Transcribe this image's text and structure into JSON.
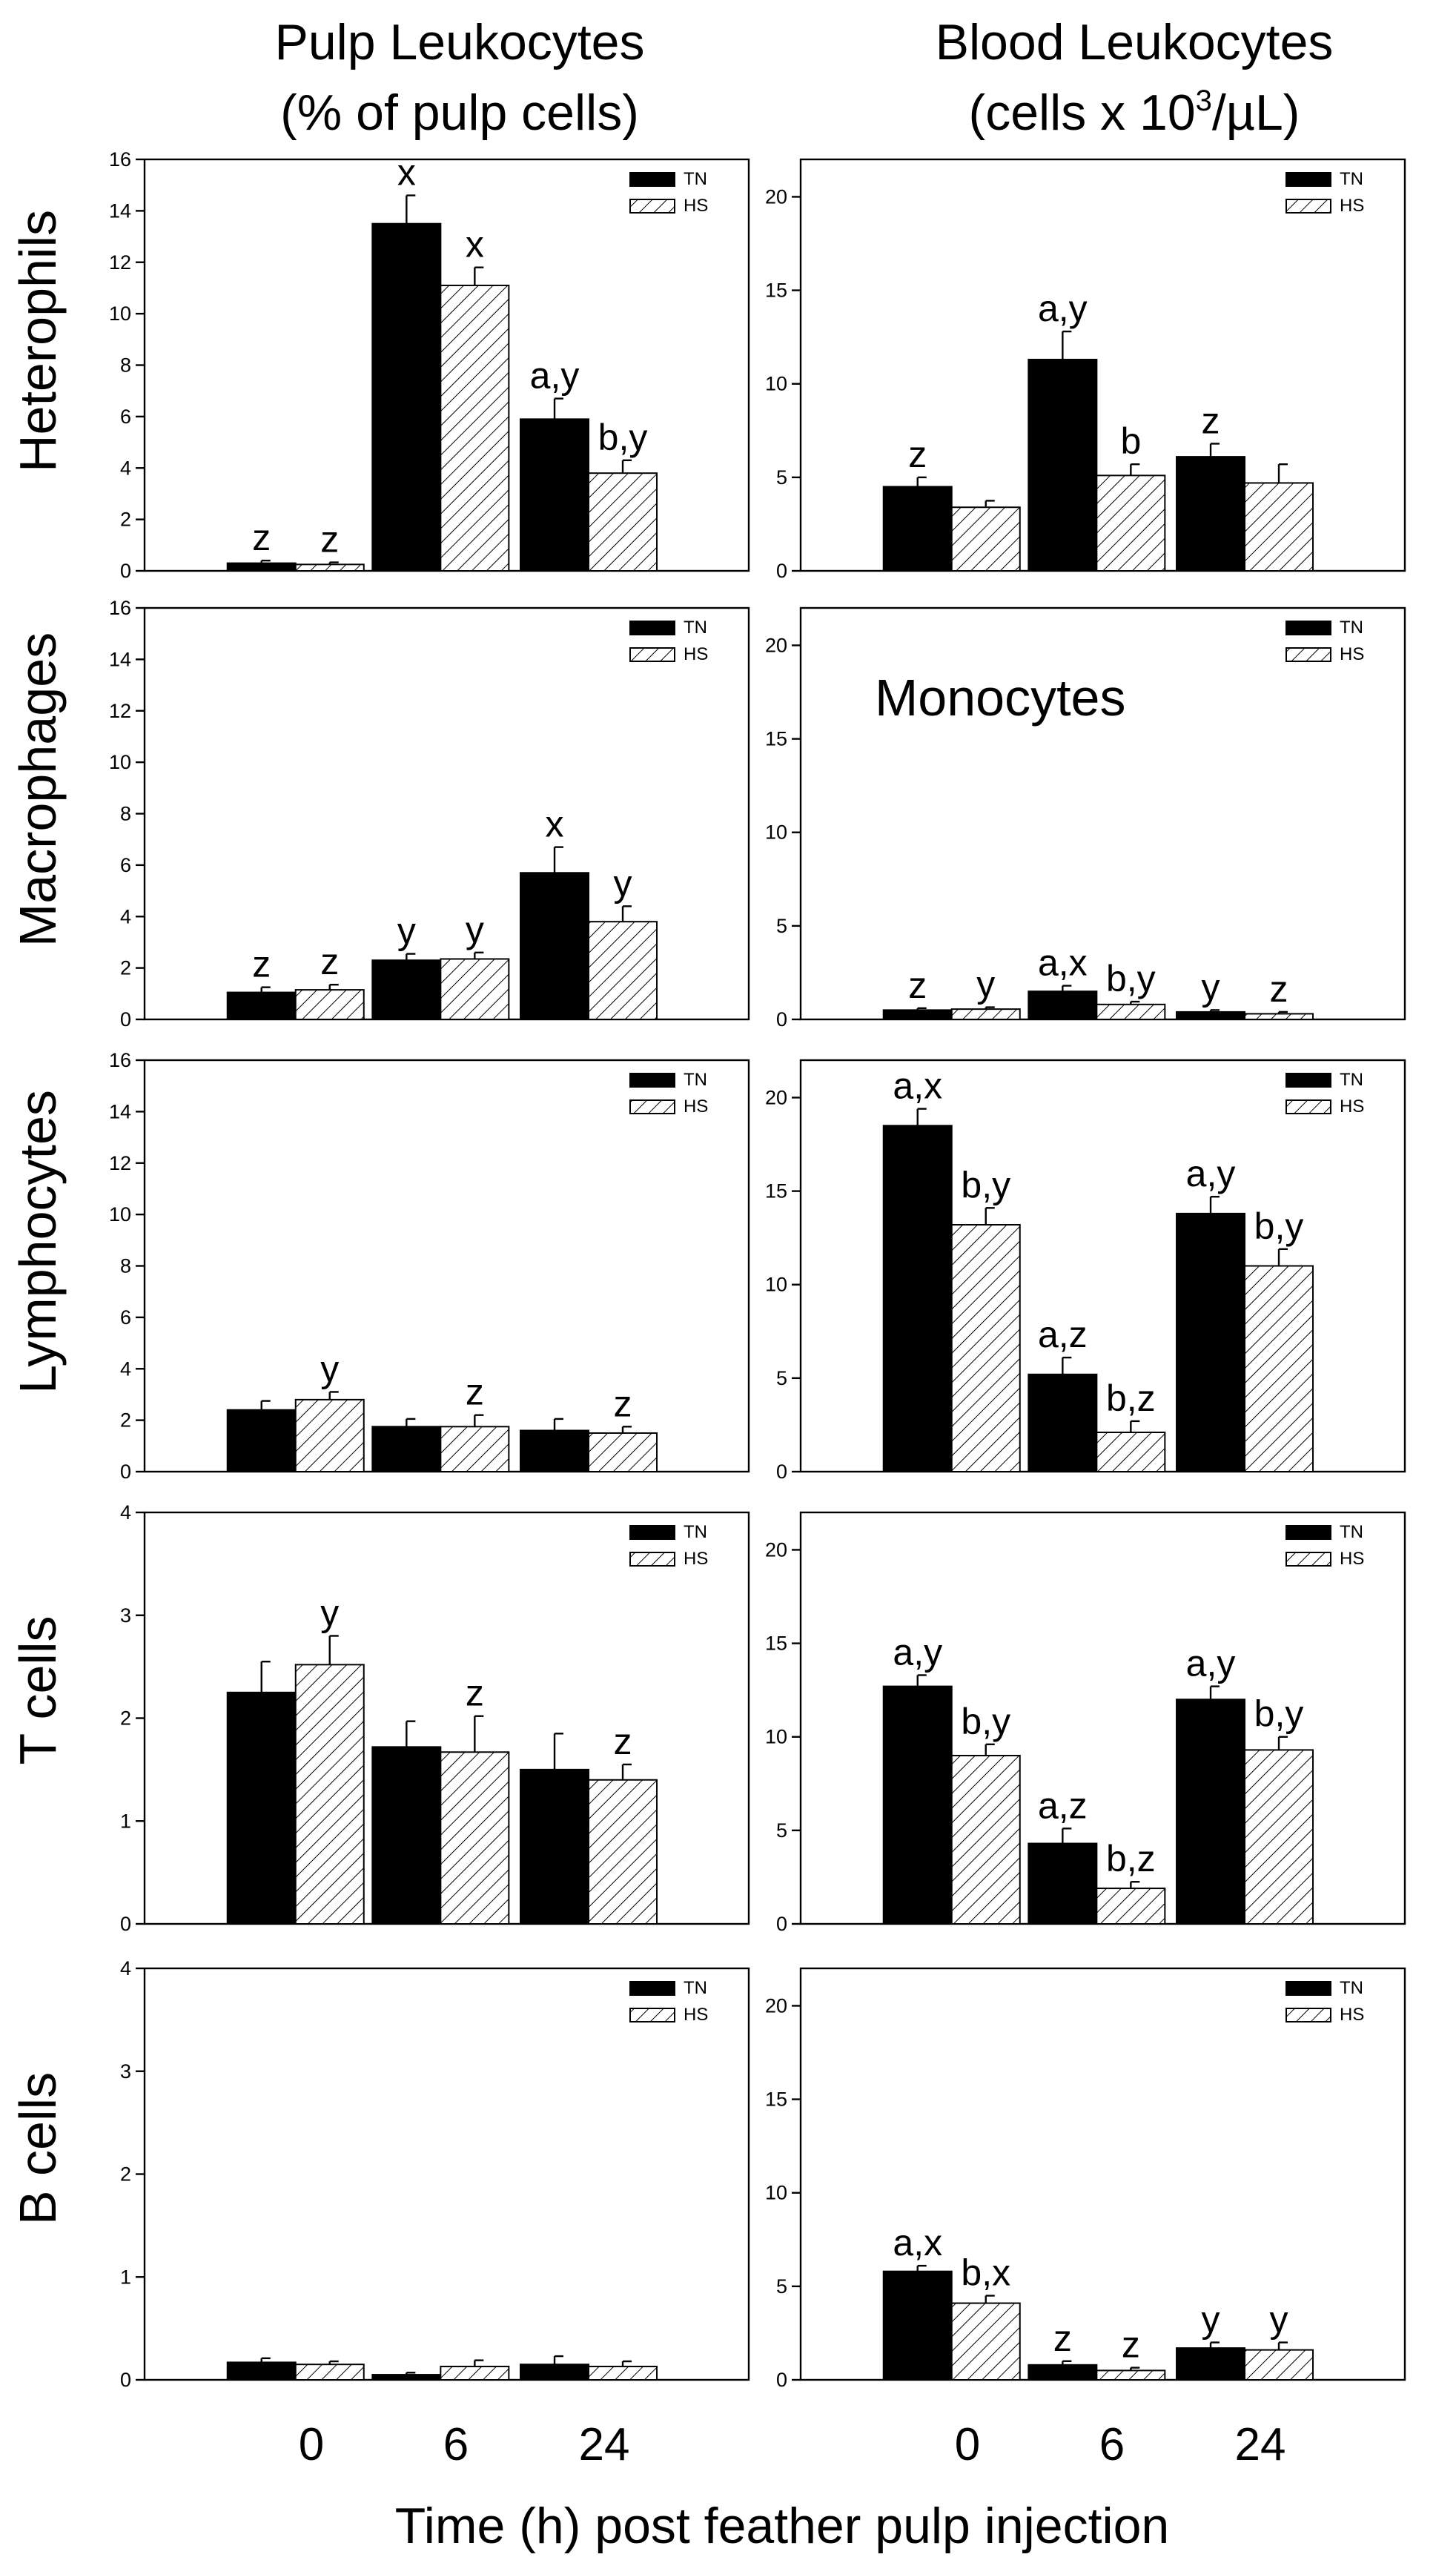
{
  "headers": {
    "left_line1": "Pulp Leukocytes",
    "left_line2": "(% of pulp cells)",
    "right_line1": "Blood Leukocytes",
    "right_line2_prefix": "(cells x 10",
    "right_line2_sup": "3",
    "right_line2_suffix": "/µL)"
  },
  "row_labels": [
    "Heterophils",
    "Macrophages",
    "Lymphocytes",
    "T cells",
    "B cells"
  ],
  "x_axis": {
    "label": "Time (h) post feather pulp injection",
    "categories": [
      "0",
      "6",
      "24"
    ]
  },
  "legend": {
    "tn": "TN",
    "hs": "HS"
  },
  "colors": {
    "tn": "#000000",
    "hs_hatch": "#000000",
    "background": "#ffffff"
  },
  "chart_data": [
    {
      "type": "bar",
      "panel": "pulp-heterophils",
      "row": "Heterophils",
      "col": "left",
      "ylim": [
        0,
        16
      ],
      "yticks": [
        0,
        2,
        4,
        6,
        8,
        10,
        12,
        14,
        16
      ],
      "series": [
        {
          "name": "TN",
          "values": [
            0.3,
            13.5,
            5.9
          ],
          "errors": [
            0.1,
            1.1,
            0.8
          ],
          "labels": [
            "z",
            "x",
            "a,y"
          ]
        },
        {
          "name": "HS",
          "values": [
            0.25,
            11.1,
            3.8
          ],
          "errors": [
            0.08,
            0.7,
            0.5
          ],
          "labels": [
            "z",
            "x",
            "b,y"
          ]
        }
      ]
    },
    {
      "type": "bar",
      "panel": "blood-heterophils",
      "row": "Heterophils",
      "col": "right",
      "ylim": [
        0,
        22
      ],
      "yticks": [
        0,
        5,
        10,
        15,
        20
      ],
      "series": [
        {
          "name": "TN",
          "values": [
            4.5,
            11.3,
            6.1
          ],
          "errors": [
            0.5,
            1.5,
            0.7
          ],
          "labels": [
            "z",
            "a,y",
            "z"
          ]
        },
        {
          "name": "HS",
          "values": [
            3.4,
            5.1,
            4.7
          ],
          "errors": [
            0.35,
            0.6,
            1.0
          ],
          "labels": [
            "",
            "b",
            ""
          ]
        }
      ]
    },
    {
      "type": "bar",
      "panel": "pulp-macrophages",
      "row": "Macrophages",
      "col": "left",
      "ylim": [
        0,
        16
      ],
      "yticks": [
        0,
        2,
        4,
        6,
        8,
        10,
        12,
        14,
        16
      ],
      "series": [
        {
          "name": "TN",
          "values": [
            1.05,
            2.3,
            5.7
          ],
          "errors": [
            0.2,
            0.25,
            1.0
          ],
          "labels": [
            "z",
            "y",
            "x"
          ]
        },
        {
          "name": "HS",
          "values": [
            1.15,
            2.35,
            3.8
          ],
          "errors": [
            0.2,
            0.25,
            0.6
          ],
          "labels": [
            "z",
            "y",
            "y"
          ]
        }
      ]
    },
    {
      "type": "bar",
      "panel": "blood-monocytes",
      "row": "Macrophages",
      "col": "right",
      "title": "Monocytes",
      "ylim": [
        0,
        22
      ],
      "yticks": [
        0,
        5,
        10,
        15,
        20
      ],
      "series": [
        {
          "name": "TN",
          "values": [
            0.5,
            1.5,
            0.4
          ],
          "errors": [
            0.1,
            0.3,
            0.1
          ],
          "labels": [
            "z",
            "a,x",
            "y"
          ]
        },
        {
          "name": "HS",
          "values": [
            0.55,
            0.8,
            0.3
          ],
          "errors": [
            0.1,
            0.15,
            0.1
          ],
          "labels": [
            "y",
            "b,y",
            "z"
          ]
        }
      ]
    },
    {
      "type": "bar",
      "panel": "pulp-lymphocytes",
      "row": "Lymphocytes",
      "col": "left",
      "ylim": [
        0,
        16
      ],
      "yticks": [
        0,
        2,
        4,
        6,
        8,
        10,
        12,
        14,
        16
      ],
      "series": [
        {
          "name": "TN",
          "values": [
            2.4,
            1.75,
            1.6
          ],
          "errors": [
            0.35,
            0.3,
            0.45
          ],
          "labels": [
            "",
            "",
            ""
          ]
        },
        {
          "name": "HS",
          "values": [
            2.8,
            1.75,
            1.5
          ],
          "errors": [
            0.3,
            0.45,
            0.25
          ],
          "labels": [
            "y",
            "z",
            "z"
          ]
        }
      ]
    },
    {
      "type": "bar",
      "panel": "blood-lymphocytes",
      "row": "Lymphocytes",
      "col": "right",
      "ylim": [
        0,
        22
      ],
      "yticks": [
        0,
        5,
        10,
        15,
        20
      ],
      "series": [
        {
          "name": "TN",
          "values": [
            18.5,
            5.2,
            13.8
          ],
          "errors": [
            0.9,
            0.9,
            0.9
          ],
          "labels": [
            "a,x",
            "a,z",
            "a,y"
          ]
        },
        {
          "name": "HS",
          "values": [
            13.2,
            2.1,
            11.0
          ],
          "errors": [
            0.9,
            0.6,
            0.9
          ],
          "labels": [
            "b,y",
            "b,z",
            "b,y"
          ]
        }
      ]
    },
    {
      "type": "bar",
      "panel": "pulp-t-cells",
      "row": "T cells",
      "col": "left",
      "ylim": [
        0,
        4
      ],
      "yticks": [
        0,
        1,
        2,
        3,
        4
      ],
      "series": [
        {
          "name": "TN",
          "values": [
            2.25,
            1.72,
            1.5
          ],
          "errors": [
            0.3,
            0.25,
            0.35
          ],
          "labels": [
            "",
            "",
            ""
          ]
        },
        {
          "name": "HS",
          "values": [
            2.52,
            1.67,
            1.4
          ],
          "errors": [
            0.28,
            0.35,
            0.15
          ],
          "labels": [
            "y",
            "z",
            "z"
          ]
        }
      ]
    },
    {
      "type": "bar",
      "panel": "blood-t-cells",
      "row": "T cells",
      "col": "right",
      "ylim": [
        0,
        22
      ],
      "yticks": [
        0,
        5,
        10,
        15,
        20
      ],
      "series": [
        {
          "name": "TN",
          "values": [
            12.7,
            4.3,
            12.0
          ],
          "errors": [
            0.6,
            0.8,
            0.7
          ],
          "labels": [
            "a,y",
            "a,z",
            "a,y"
          ]
        },
        {
          "name": "HS",
          "values": [
            9.0,
            1.9,
            9.3
          ],
          "errors": [
            0.6,
            0.35,
            0.7
          ],
          "labels": [
            "b,y",
            "b,z",
            "b,y"
          ]
        }
      ]
    },
    {
      "type": "bar",
      "panel": "pulp-b-cells",
      "row": "B cells",
      "col": "left",
      "ylim": [
        0,
        4
      ],
      "yticks": [
        0,
        1,
        2,
        3,
        4
      ],
      "series": [
        {
          "name": "TN",
          "values": [
            0.17,
            0.05,
            0.15
          ],
          "errors": [
            0.04,
            0.02,
            0.08
          ],
          "labels": [
            "",
            "",
            ""
          ]
        },
        {
          "name": "HS",
          "values": [
            0.15,
            0.13,
            0.13
          ],
          "errors": [
            0.03,
            0.06,
            0.05
          ],
          "labels": [
            "",
            "",
            ""
          ]
        }
      ]
    },
    {
      "type": "bar",
      "panel": "blood-b-cells",
      "row": "B cells",
      "col": "right",
      "ylim": [
        0,
        22
      ],
      "yticks": [
        0,
        5,
        10,
        15,
        20
      ],
      "series": [
        {
          "name": "TN",
          "values": [
            5.8,
            0.8,
            1.7
          ],
          "errors": [
            0.3,
            0.2,
            0.3
          ],
          "labels": [
            "a,x",
            "z",
            "y"
          ]
        },
        {
          "name": "HS",
          "values": [
            4.1,
            0.5,
            1.6
          ],
          "errors": [
            0.4,
            0.15,
            0.4
          ],
          "labels": [
            "b,x",
            "z",
            "y"
          ]
        }
      ]
    }
  ]
}
